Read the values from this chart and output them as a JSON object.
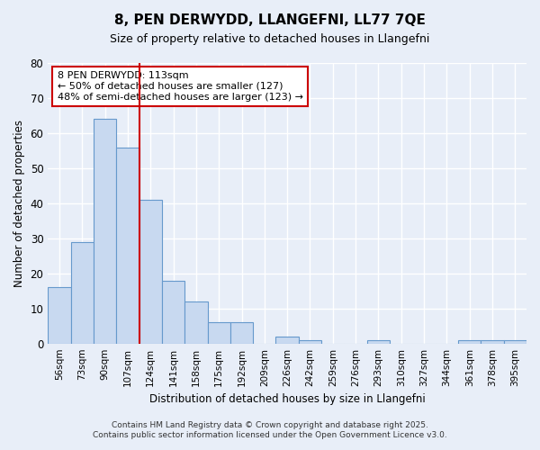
{
  "title_line1": "8, PEN DERWYDD, LLANGEFNI, LL77 7QE",
  "title_line2": "Size of property relative to detached houses in Llangefni",
  "xlabel": "Distribution of detached houses by size in Llangefni",
  "ylabel": "Number of detached properties",
  "bar_labels": [
    "56sqm",
    "73sqm",
    "90sqm",
    "107sqm",
    "124sqm",
    "141sqm",
    "158sqm",
    "175sqm",
    "192sqm",
    "209sqm",
    "226sqm",
    "242sqm",
    "259sqm",
    "276sqm",
    "293sqm",
    "310sqm",
    "327sqm",
    "344sqm",
    "361sqm",
    "378sqm",
    "395sqm"
  ],
  "bar_values": [
    16,
    29,
    64,
    56,
    41,
    18,
    12,
    6,
    6,
    0,
    2,
    1,
    0,
    0,
    1,
    0,
    0,
    0,
    1,
    1,
    1
  ],
  "ylim": [
    0,
    80
  ],
  "yticks": [
    0,
    10,
    20,
    30,
    40,
    50,
    60,
    70,
    80
  ],
  "bar_color": "#c8d9f0",
  "bar_edge_color": "#6699cc",
  "background_color": "#e8eef8",
  "plot_bg_color": "#e8eef8",
  "grid_color": "#ffffff",
  "vline_color": "#cc0000",
  "vline_x_index": 3.5,
  "annotation_text": "8 PEN DERWYDD: 113sqm\n← 50% of detached houses are smaller (127)\n48% of semi-detached houses are larger (123) →",
  "annotation_box_facecolor": "#ffffff",
  "annotation_box_edgecolor": "#cc0000",
  "footer_line1": "Contains HM Land Registry data © Crown copyright and database right 2025.",
  "footer_line2": "Contains public sector information licensed under the Open Government Licence v3.0."
}
